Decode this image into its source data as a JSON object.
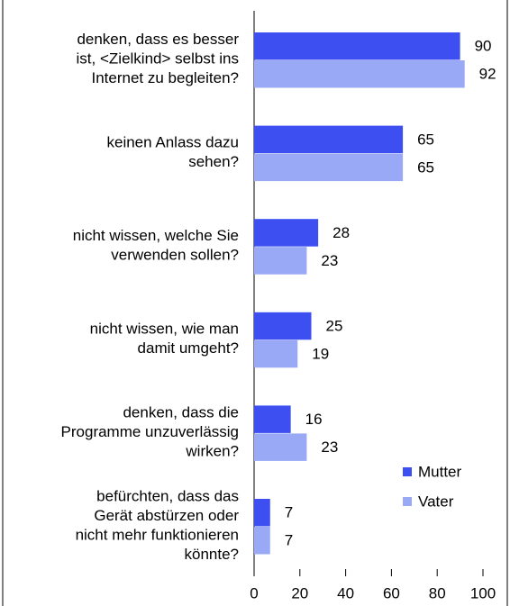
{
  "chart_data": {
    "type": "bar",
    "orientation": "horizontal",
    "categories": [
      "denken, dass es besser\nist, <Zielkind> selbst ins\nInternet zu begleiten?",
      "keinen Anlass dazu\nsehen?",
      "nicht wissen, welche Sie\nverwenden sollen?",
      "nicht wissen, wie man\ndamit umgeht?",
      "denken, dass die\nProgramme unzuverlässig\nwirken?",
      "befürchten, dass das\nGerät abstürzen oder\nnicht mehr funktionieren\nkönnte?"
    ],
    "series": [
      {
        "name": "Mutter",
        "color": "#3d4ff0",
        "values": [
          90,
          65,
          28,
          25,
          16,
          7
        ]
      },
      {
        "name": "Vater",
        "color": "#99a9f5",
        "values": [
          92,
          65,
          23,
          19,
          23,
          7
        ]
      }
    ],
    "xlim": [
      0,
      100
    ],
    "xticks": [
      0,
      20,
      40,
      60,
      80,
      100
    ],
    "legend": "lower right"
  }
}
